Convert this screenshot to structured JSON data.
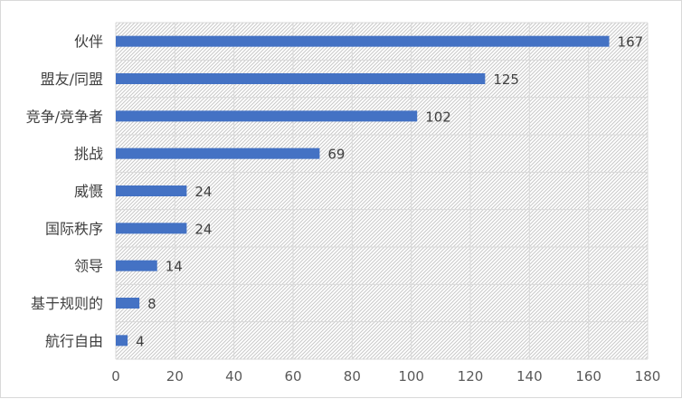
{
  "chart_data": {
    "type": "bar",
    "orientation": "horizontal",
    "categories": [
      "伙伴",
      "盟友/同盟",
      "竞争/竞争者",
      "挑战",
      "威慑",
      "国际秩序",
      "领导",
      "基于规则的",
      "航行自由"
    ],
    "values": [
      167,
      125,
      102,
      69,
      24,
      24,
      14,
      8,
      4
    ],
    "xlim": [
      0,
      180
    ],
    "xticks": [
      0,
      20,
      40,
      60,
      80,
      100,
      120,
      140,
      160,
      180
    ],
    "grid": true,
    "bar_color": "#4472c4",
    "grid_color": "#d9d9d9",
    "plot_fill": "hatched-gray"
  }
}
